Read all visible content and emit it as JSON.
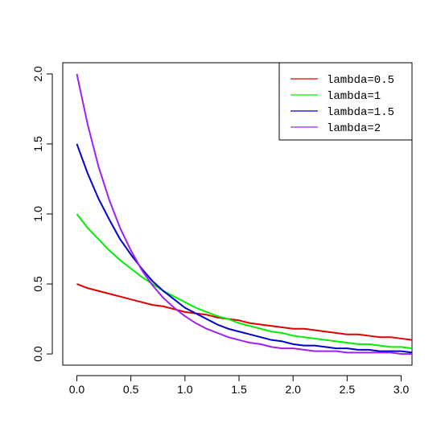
{
  "chart_data": {
    "type": "line",
    "title": "",
    "xlabel": "",
    "ylabel": "",
    "xlim": [
      -0.13,
      3.1
    ],
    "ylim": [
      -0.08,
      2.08
    ],
    "x_ticks": [
      0.0,
      0.5,
      1.0,
      1.5,
      2.0,
      2.5,
      3.0
    ],
    "x_tick_labels": [
      "0.0",
      "0.5",
      "1.0",
      "1.5",
      "2.0",
      "2.5",
      "3.0"
    ],
    "y_ticks": [
      0.0,
      0.5,
      1.0,
      1.5,
      2.0
    ],
    "y_tick_labels": [
      "0.0",
      "0.5",
      "1.0",
      "1.5",
      "2.0"
    ],
    "grid": false,
    "legend_position": "top-right",
    "x": [
      0.0,
      0.1,
      0.2,
      0.3,
      0.4,
      0.5,
      0.6,
      0.7,
      0.8,
      0.9,
      1.0,
      1.1,
      1.2,
      1.3,
      1.4,
      1.5,
      1.6,
      1.7,
      1.8,
      1.9,
      2.0,
      2.1,
      2.2,
      2.3,
      2.4,
      2.5,
      2.6,
      2.7,
      2.8,
      2.9,
      3.0,
      3.1
    ],
    "series": [
      {
        "name": "lambda=0.5",
        "color": "#dd0000",
        "values": [
          0.5,
          0.47,
          0.45,
          0.43,
          0.41,
          0.39,
          0.37,
          0.35,
          0.34,
          0.32,
          0.3,
          0.29,
          0.28,
          0.26,
          0.25,
          0.24,
          0.22,
          0.21,
          0.2,
          0.19,
          0.18,
          0.18,
          0.17,
          0.16,
          0.15,
          0.14,
          0.14,
          0.13,
          0.12,
          0.12,
          0.11,
          0.1
        ]
      },
      {
        "name": "lambda=1",
        "color": "#00ee00",
        "values": [
          1.0,
          0.9,
          0.82,
          0.74,
          0.67,
          0.61,
          0.55,
          0.5,
          0.45,
          0.41,
          0.37,
          0.33,
          0.3,
          0.27,
          0.25,
          0.22,
          0.2,
          0.18,
          0.16,
          0.15,
          0.13,
          0.12,
          0.11,
          0.1,
          0.09,
          0.08,
          0.07,
          0.07,
          0.06,
          0.05,
          0.05,
          0.04
        ]
      },
      {
        "name": "lambda=1.5",
        "color": "#0000cc",
        "values": [
          1.5,
          1.29,
          1.11,
          0.96,
          0.82,
          0.71,
          0.61,
          0.52,
          0.45,
          0.39,
          0.33,
          0.29,
          0.25,
          0.21,
          0.18,
          0.16,
          0.14,
          0.12,
          0.1,
          0.09,
          0.07,
          0.06,
          0.06,
          0.05,
          0.04,
          0.04,
          0.03,
          0.03,
          0.02,
          0.02,
          0.02,
          0.01
        ]
      },
      {
        "name": "lambda=2",
        "color": "#a020f0",
        "values": [
          2.0,
          1.64,
          1.34,
          1.1,
          0.9,
          0.74,
          0.6,
          0.49,
          0.4,
          0.33,
          0.27,
          0.22,
          0.18,
          0.15,
          0.12,
          0.1,
          0.08,
          0.07,
          0.05,
          0.04,
          0.04,
          0.03,
          0.02,
          0.02,
          0.02,
          0.01,
          0.01,
          0.01,
          0.01,
          0.01,
          0.0,
          0.0
        ]
      }
    ]
  }
}
